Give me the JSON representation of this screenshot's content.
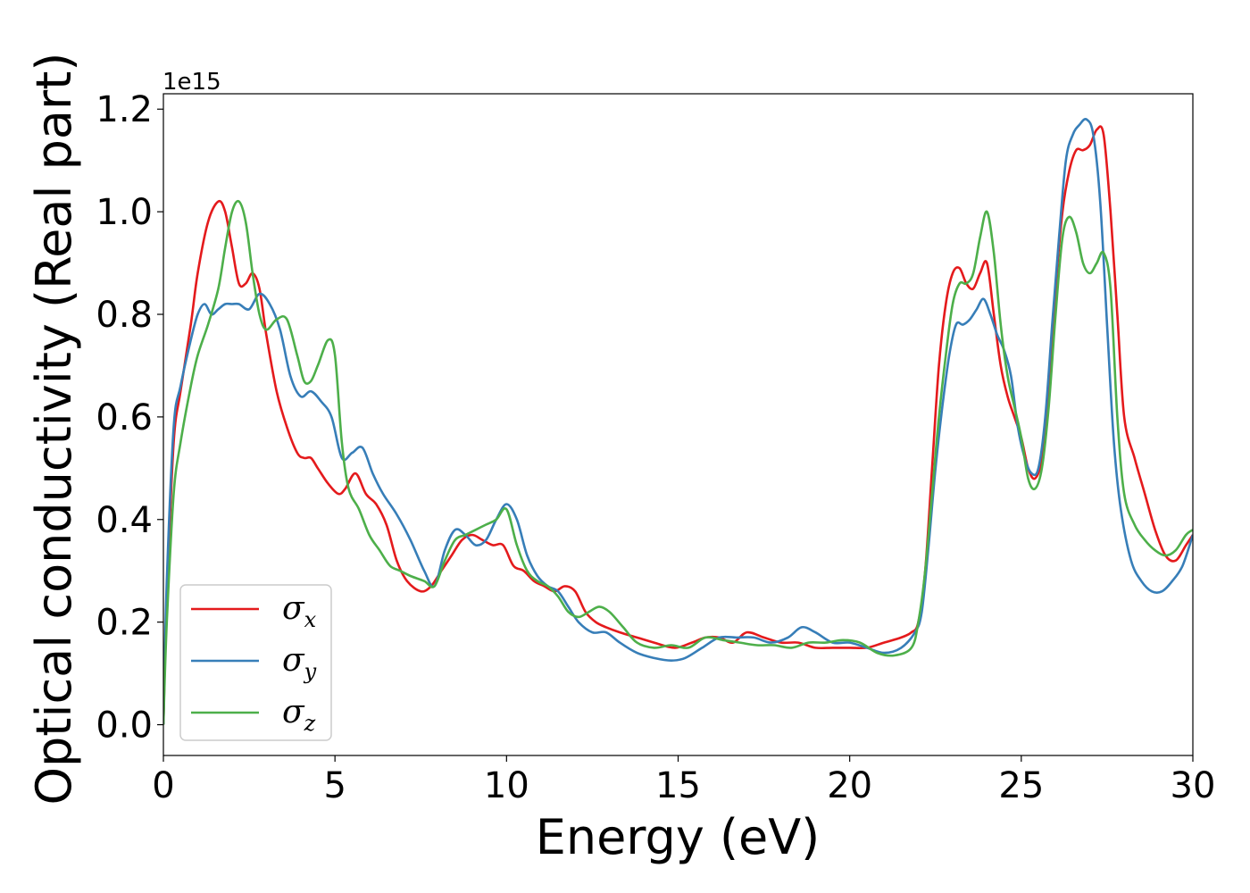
{
  "chart_data": {
    "type": "line",
    "xlabel": "Energy (eV)",
    "ylabel": "Optical conductivity (Real part)",
    "y_offset_label": "1e15",
    "xlim": [
      0,
      30
    ],
    "ylim": [
      -0.06,
      1.23
    ],
    "xticks": [
      0,
      5,
      10,
      15,
      20,
      25,
      30
    ],
    "xtick_labels": [
      "0",
      "5",
      "10",
      "15",
      "20",
      "25",
      "30"
    ],
    "yticks": [
      0.0,
      0.2,
      0.4,
      0.6,
      0.8,
      1.0,
      1.2
    ],
    "ytick_labels": [
      "0.0",
      "0.2",
      "0.4",
      "0.6",
      "0.8",
      "1.0",
      "1.2"
    ],
    "grid": false,
    "legend_position": "lower-left",
    "series": [
      {
        "name": "σx",
        "legend_symbol": "σ",
        "legend_subscript": "x",
        "color": "#e41a1c",
        "x": [
          0,
          0.1,
          0.3,
          0.5,
          0.8,
          1.0,
          1.3,
          1.6,
          1.8,
          2.0,
          2.2,
          2.4,
          2.6,
          2.8,
          3.0,
          3.3,
          3.6,
          3.9,
          4.1,
          4.3,
          4.5,
          4.8,
          5.1,
          5.3,
          5.6,
          5.9,
          6.2,
          6.5,
          6.8,
          7.1,
          7.5,
          7.8,
          8.1,
          8.4,
          8.7,
          9.0,
          9.3,
          9.6,
          9.9,
          10.2,
          10.5,
          10.8,
          11.1,
          11.4,
          11.7,
          12.0,
          12.3,
          12.6,
          12.9,
          13.3,
          13.8,
          14.3,
          14.9,
          15.4,
          15.8,
          16.2,
          16.6,
          17.0,
          17.5,
          18.0,
          18.5,
          19.0,
          19.5,
          20.0,
          20.5,
          21.0,
          21.5,
          21.8,
          22.0,
          22.2,
          22.4,
          22.6,
          22.8,
          23.0,
          23.2,
          23.4,
          23.6,
          23.8,
          24.0,
          24.2,
          24.4,
          24.6,
          24.8,
          25.0,
          25.2,
          25.4,
          25.6,
          25.8,
          26.0,
          26.2,
          26.4,
          26.6,
          26.8,
          27.0,
          27.2,
          27.4,
          27.6,
          27.8,
          28.0,
          28.3,
          28.6,
          28.9,
          29.2,
          29.5,
          29.8,
          30.0
        ],
        "values": [
          0.0,
          0.25,
          0.55,
          0.65,
          0.78,
          0.88,
          0.98,
          1.02,
          1.0,
          0.93,
          0.86,
          0.86,
          0.88,
          0.85,
          0.76,
          0.65,
          0.58,
          0.53,
          0.52,
          0.52,
          0.5,
          0.47,
          0.45,
          0.46,
          0.49,
          0.45,
          0.43,
          0.39,
          0.32,
          0.28,
          0.26,
          0.27,
          0.3,
          0.33,
          0.36,
          0.37,
          0.36,
          0.35,
          0.35,
          0.31,
          0.3,
          0.28,
          0.27,
          0.26,
          0.27,
          0.26,
          0.22,
          0.2,
          0.19,
          0.18,
          0.17,
          0.16,
          0.15,
          0.16,
          0.17,
          0.17,
          0.16,
          0.18,
          0.17,
          0.16,
          0.16,
          0.15,
          0.15,
          0.15,
          0.15,
          0.16,
          0.17,
          0.18,
          0.2,
          0.3,
          0.5,
          0.7,
          0.82,
          0.88,
          0.89,
          0.86,
          0.85,
          0.88,
          0.9,
          0.8,
          0.7,
          0.64,
          0.6,
          0.56,
          0.5,
          0.48,
          0.52,
          0.65,
          0.85,
          1.0,
          1.08,
          1.12,
          1.12,
          1.13,
          1.16,
          1.15,
          1.0,
          0.8,
          0.6,
          0.52,
          0.45,
          0.38,
          0.33,
          0.32,
          0.35,
          0.37
        ]
      },
      {
        "name": "σy",
        "legend_symbol": "σ",
        "legend_subscript": "y",
        "color": "#377eb8",
        "x": [
          0,
          0.1,
          0.3,
          0.5,
          0.8,
          1.0,
          1.2,
          1.4,
          1.6,
          1.8,
          2.0,
          2.2,
          2.5,
          2.8,
          3.1,
          3.4,
          3.7,
          4.0,
          4.3,
          4.6,
          4.9,
          5.2,
          5.5,
          5.8,
          6.1,
          6.4,
          6.8,
          7.2,
          7.6,
          7.9,
          8.2,
          8.5,
          8.8,
          9.1,
          9.4,
          9.7,
          10.0,
          10.3,
          10.6,
          10.9,
          11.2,
          11.5,
          11.8,
          12.1,
          12.5,
          12.9,
          13.3,
          13.8,
          14.3,
          14.8,
          15.2,
          15.7,
          16.2,
          16.7,
          17.2,
          17.7,
          18.2,
          18.6,
          19.0,
          19.5,
          20.0,
          20.5,
          21.0,
          21.5,
          21.9,
          22.1,
          22.3,
          22.5,
          22.7,
          22.9,
          23.1,
          23.3,
          23.5,
          23.7,
          23.9,
          24.1,
          24.3,
          24.5,
          24.7,
          24.9,
          25.1,
          25.3,
          25.5,
          25.7,
          25.9,
          26.1,
          26.3,
          26.5,
          26.7,
          26.9,
          27.1,
          27.3,
          27.5,
          27.7,
          27.9,
          28.2,
          28.5,
          28.8,
          29.1,
          29.4,
          29.7,
          30.0
        ],
        "values": [
          0.0,
          0.28,
          0.58,
          0.66,
          0.75,
          0.8,
          0.82,
          0.8,
          0.81,
          0.82,
          0.82,
          0.82,
          0.81,
          0.84,
          0.82,
          0.77,
          0.68,
          0.64,
          0.65,
          0.63,
          0.6,
          0.52,
          0.53,
          0.54,
          0.49,
          0.45,
          0.41,
          0.36,
          0.3,
          0.27,
          0.34,
          0.38,
          0.37,
          0.35,
          0.36,
          0.4,
          0.43,
          0.4,
          0.33,
          0.29,
          0.27,
          0.26,
          0.23,
          0.2,
          0.18,
          0.18,
          0.16,
          0.14,
          0.13,
          0.125,
          0.13,
          0.15,
          0.17,
          0.17,
          0.17,
          0.16,
          0.17,
          0.19,
          0.18,
          0.16,
          0.16,
          0.15,
          0.14,
          0.15,
          0.18,
          0.22,
          0.35,
          0.5,
          0.62,
          0.72,
          0.78,
          0.78,
          0.79,
          0.81,
          0.83,
          0.8,
          0.76,
          0.73,
          0.68,
          0.58,
          0.52,
          0.49,
          0.5,
          0.6,
          0.78,
          0.95,
          1.1,
          1.15,
          1.17,
          1.18,
          1.15,
          1.02,
          0.78,
          0.55,
          0.42,
          0.32,
          0.28,
          0.26,
          0.26,
          0.28,
          0.31,
          0.37
        ]
      },
      {
        "name": "σz",
        "legend_symbol": "σ",
        "legend_subscript": "z",
        "color": "#4daf4a",
        "x": [
          0,
          0.1,
          0.3,
          0.5,
          0.8,
          1.0,
          1.3,
          1.6,
          1.8,
          2.0,
          2.2,
          2.4,
          2.6,
          2.8,
          3.0,
          3.3,
          3.6,
          3.9,
          4.1,
          4.3,
          4.5,
          4.8,
          5.0,
          5.2,
          5.4,
          5.7,
          6.0,
          6.3,
          6.6,
          6.9,
          7.2,
          7.6,
          7.9,
          8.2,
          8.5,
          8.8,
          9.1,
          9.4,
          9.7,
          10.0,
          10.3,
          10.6,
          10.9,
          11.2,
          11.5,
          11.8,
          12.1,
          12.4,
          12.7,
          13.0,
          13.4,
          13.8,
          14.3,
          14.8,
          15.3,
          15.8,
          16.3,
          16.8,
          17.3,
          17.8,
          18.3,
          18.8,
          19.3,
          19.8,
          20.3,
          20.8,
          21.3,
          21.8,
          22.0,
          22.2,
          22.4,
          22.6,
          22.8,
          23.0,
          23.2,
          23.4,
          23.6,
          23.8,
          24.0,
          24.2,
          24.4,
          24.6,
          24.8,
          25.0,
          25.2,
          25.4,
          25.6,
          25.8,
          26.0,
          26.2,
          26.4,
          26.6,
          26.8,
          27.0,
          27.2,
          27.4,
          27.6,
          27.8,
          28.0,
          28.3,
          28.6,
          28.9,
          29.2,
          29.5,
          29.8,
          30.0
        ],
        "values": [
          0.0,
          0.2,
          0.45,
          0.55,
          0.66,
          0.72,
          0.78,
          0.85,
          0.93,
          1.0,
          1.02,
          0.98,
          0.88,
          0.8,
          0.77,
          0.79,
          0.79,
          0.72,
          0.67,
          0.67,
          0.7,
          0.75,
          0.72,
          0.55,
          0.46,
          0.42,
          0.37,
          0.34,
          0.31,
          0.3,
          0.29,
          0.28,
          0.27,
          0.32,
          0.36,
          0.37,
          0.38,
          0.39,
          0.4,
          0.42,
          0.35,
          0.3,
          0.28,
          0.27,
          0.25,
          0.22,
          0.21,
          0.22,
          0.23,
          0.22,
          0.19,
          0.16,
          0.15,
          0.155,
          0.15,
          0.17,
          0.165,
          0.16,
          0.155,
          0.155,
          0.15,
          0.16,
          0.16,
          0.165,
          0.16,
          0.14,
          0.135,
          0.15,
          0.2,
          0.3,
          0.45,
          0.6,
          0.72,
          0.82,
          0.86,
          0.86,
          0.88,
          0.95,
          1.0,
          0.92,
          0.78,
          0.68,
          0.62,
          0.56,
          0.48,
          0.46,
          0.5,
          0.62,
          0.8,
          0.95,
          0.99,
          0.96,
          0.9,
          0.88,
          0.9,
          0.92,
          0.85,
          0.6,
          0.45,
          0.39,
          0.36,
          0.34,
          0.33,
          0.34,
          0.37,
          0.38
        ]
      }
    ]
  }
}
